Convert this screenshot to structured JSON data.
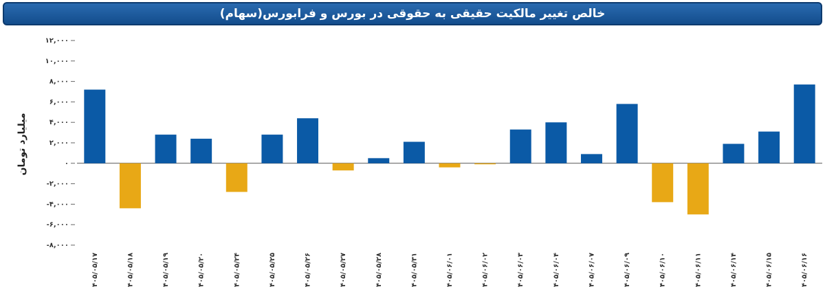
{
  "chart_data": {
    "type": "bar",
    "title": "خالص تغییر مالکیت حقیقی به حقوقی در بورس و فرابورس(سهام)",
    "y_label": "میلیارد تومان",
    "categories": [
      "۱۴۰۵/۰۵/۱۷",
      "۱۴۰۵/۰۵/۱۸",
      "۱۴۰۵/۰۵/۱۹",
      "۱۴۰۵/۰۵/۲۰",
      "۱۴۰۵/۰۵/۲۴",
      "۱۴۰۵/۰۵/۲۵",
      "۱۴۰۵/۰۵/۲۶",
      "۱۴۰۵/۰۵/۲۷",
      "۱۴۰۵/۰۵/۲۸",
      "۱۴۰۵/۰۵/۳۱",
      "۱۴۰۵/۰۶/۰۱",
      "۱۴۰۵/۰۶/۰۲",
      "۱۴۰۵/۰۶/۰۳",
      "۱۴۰۵/۰۶/۰۴",
      "۱۴۰۵/۰۶/۰۷",
      "۱۴۰۵/۰۶/۰۹",
      "۱۴۰۵/۰۶/۱۰",
      "۱۴۰۵/۰۶/۱۱",
      "۱۴۰۵/۰۶/۱۴",
      "۱۴۰۵/۰۶/۱۵",
      "۱۴۰۵/۰۶/۱۶"
    ],
    "values": [
      7200,
      -4400,
      2800,
      2400,
      -2800,
      2800,
      4400,
      -700,
      500,
      2100,
      -400,
      -100,
      3300,
      4000,
      900,
      5800,
      -3800,
      -5000,
      1900,
      3100,
      7700
    ],
    "color_positive": "#0b5aa6",
    "color_negative": "#e8a816",
    "ylim": [
      -8000,
      12000
    ],
    "yticks": [
      {
        "value": -8000,
        "label": "-۸,۰۰۰"
      },
      {
        "value": -6000,
        "label": "-۶,۰۰۰"
      },
      {
        "value": -4000,
        "label": "-۴,۰۰۰"
      },
      {
        "value": -2000,
        "label": "-۲,۰۰۰"
      },
      {
        "value": 0,
        "label": "۰"
      },
      {
        "value": 2000,
        "label": "۲,۰۰۰"
      },
      {
        "value": 4000,
        "label": "۴,۰۰۰"
      },
      {
        "value": 6000,
        "label": "۶,۰۰۰"
      },
      {
        "value": 8000,
        "label": "۸,۰۰۰"
      },
      {
        "value": 10000,
        "label": "۱۰,۰۰۰"
      },
      {
        "value": 12000,
        "label": "۱۲,۰۰۰"
      }
    ]
  }
}
